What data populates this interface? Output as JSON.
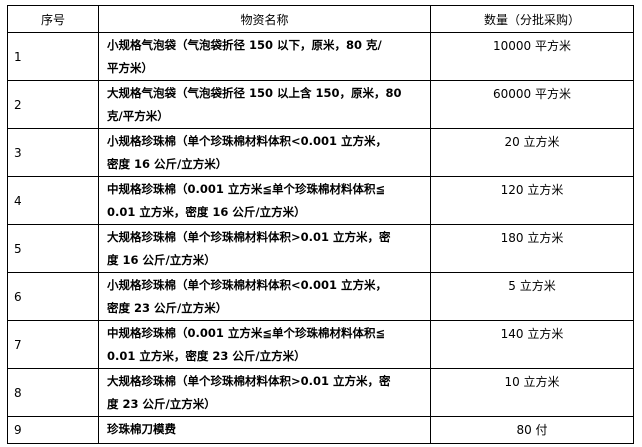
{
  "header": {
    "no": "序号",
    "name": "物资名称",
    "qty": "数量（分批采购）"
  },
  "rows": [
    {
      "no": "1",
      "name": [
        "小规格气泡袋（气泡袋折径 150 以下，原米，80 克/",
        "平方米）"
      ],
      "qty": "10000 平方米"
    },
    {
      "no": "2",
      "name": [
        "大规格气泡袋（气泡袋折径 150 以上含 150，原米，80",
        "克/平方米）"
      ],
      "qty": "60000 平方米"
    },
    {
      "no": "3",
      "name": [
        "小规格珍珠棉（单个珍珠棉材料体积<0.001 立方米，",
        "密度 16 公斤/立方米）"
      ],
      "qty": "20 立方米"
    },
    {
      "no": "4",
      "name": [
        "中规格珍珠棉（0.001 立方米≦单个珍珠棉材料体积≦",
        "0.01 立方米，密度 16 公斤/立方米）"
      ],
      "qty": "120 立方米"
    },
    {
      "no": "5",
      "name": [
        "大规格珍珠棉（单个珍珠棉材料体积>0.01 立方米，密",
        "度 16 公斤/立方米）"
      ],
      "qty": "180 立方米"
    },
    {
      "no": "6",
      "name": [
        "小规格珍珠棉（单个珍珠棉材料体积<0.001 立方米，",
        "密度 23 公斤/立方米）"
      ],
      "qty": "5 立方米"
    },
    {
      "no": "7",
      "name": [
        "中规格珍珠棉（0.001 立方米≦单个珍珠棉材料体积≦",
        "0.01 立方米，密度 23 公斤/立方米）"
      ],
      "qty": "140 立方米"
    },
    {
      "no": "8",
      "name": [
        "大规格珍珠棉（单个珍珠棉材料体积>0.01 立方米，密",
        "度 23 公斤/立方米）"
      ],
      "qty": "10 立方米"
    },
    {
      "no": "9",
      "name": [
        "珍珠棉刀模费"
      ],
      "qty": "80 付"
    }
  ]
}
